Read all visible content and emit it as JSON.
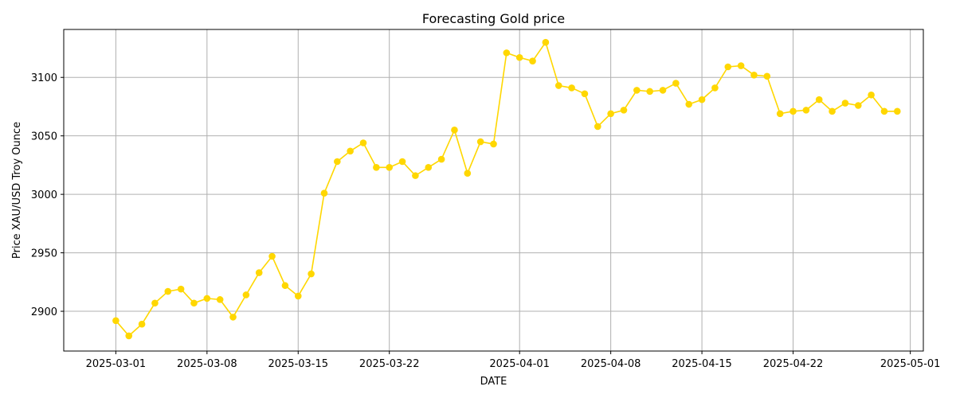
{
  "chart_data": {
    "type": "line",
    "title": "Forecasting Gold price",
    "xlabel": "DATE",
    "ylabel": "Price XAU/USD Troy Ounce",
    "grid": true,
    "legend": "none",
    "color": "#FFD700",
    "xlim": [
      "2025-02-25",
      "2025-05-02"
    ],
    "ylim": [
      2866,
      3141
    ],
    "x_ticks": [
      "2025-03-01",
      "2025-03-08",
      "2025-03-15",
      "2025-03-22",
      "2025-04-01",
      "2025-04-08",
      "2025-04-15",
      "2025-04-22",
      "2025-05-01"
    ],
    "y_ticks": [
      2900,
      2950,
      3000,
      3050,
      3100
    ],
    "series": [
      {
        "x": [
          "2025-03-01",
          "2025-03-02",
          "2025-03-03",
          "2025-03-04",
          "2025-03-05",
          "2025-03-06",
          "2025-03-07",
          "2025-03-08",
          "2025-03-09",
          "2025-03-10",
          "2025-03-11",
          "2025-03-12",
          "2025-03-13",
          "2025-03-14",
          "2025-03-15",
          "2025-03-16",
          "2025-03-17",
          "2025-03-18",
          "2025-03-19",
          "2025-03-20",
          "2025-03-21",
          "2025-03-22",
          "2025-03-23",
          "2025-03-24",
          "2025-03-25",
          "2025-03-26",
          "2025-03-27",
          "2025-03-28",
          "2025-03-29",
          "2025-03-30",
          "2025-03-31",
          "2025-04-01",
          "2025-04-02",
          "2025-04-03",
          "2025-04-04",
          "2025-04-05",
          "2025-04-06",
          "2025-04-07",
          "2025-04-08",
          "2025-04-09",
          "2025-04-10",
          "2025-04-11",
          "2025-04-12",
          "2025-04-13",
          "2025-04-14",
          "2025-04-15",
          "2025-04-16",
          "2025-04-17",
          "2025-04-18",
          "2025-04-19",
          "2025-04-20",
          "2025-04-21",
          "2025-04-22",
          "2025-04-23",
          "2025-04-24",
          "2025-04-25",
          "2025-04-26",
          "2025-04-27",
          "2025-04-28",
          "2025-04-29",
          "2025-04-30"
        ],
        "values": [
          2892,
          2879,
          2889,
          2907,
          2917,
          2919,
          2907,
          2911,
          2910,
          2895,
          2914,
          2933,
          2947,
          2922,
          2913,
          2932,
          3001,
          3028,
          3037,
          3044,
          3023,
          3023,
          3028,
          3016,
          3023,
          3030,
          3055,
          3018,
          3045,
          3043,
          3121,
          3117,
          3114,
          3130,
          3093,
          3091,
          3086,
          3058,
          3069,
          3072,
          3089,
          3088,
          3089,
          3095,
          3077,
          3081,
          3091,
          3109,
          3110,
          3102,
          3101,
          3069,
          3071,
          3072,
          3081,
          3071,
          3078,
          3076,
          3085,
          3071,
          3071
        ]
      }
    ]
  }
}
